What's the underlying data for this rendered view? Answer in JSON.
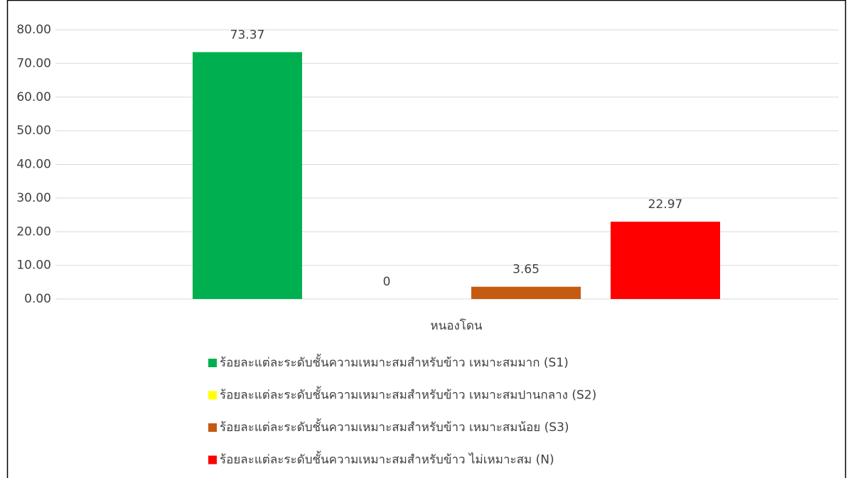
{
  "chart_data": {
    "type": "bar",
    "categories": [
      "หนองโดน"
    ],
    "series": [
      {
        "name": "ร้อยละแต่ละระดับชั้นความเหมาะสมสำหรับข้าว เหมาะสมมาก (S1)",
        "color": "#00b050",
        "values": [
          73.37
        ]
      },
      {
        "name": "ร้อยละแต่ละระดับชั้นความเหมาะสมสำหรับข้าว เหมาะสมปานกลาง (S2)",
        "color": "#ffff00",
        "values": [
          0
        ]
      },
      {
        "name": "ร้อยละแต่ละระดับชั้นความเหมาะสมสำหรับข้าว เหมาะสมน้อย (S3)",
        "color": "#c55a11",
        "values": [
          3.65
        ]
      },
      {
        "name": "ร้อยละแต่ละระดับชั้นความเหมาะสมสำหรับข้าว ไม่เหมาะสม (N)",
        "color": "#ff0000",
        "values": [
          22.97
        ]
      }
    ],
    "ylim": [
      0,
      80
    ],
    "yticks": [
      {
        "value": 0,
        "label": "0.00"
      },
      {
        "value": 10,
        "label": "10.00"
      },
      {
        "value": 20,
        "label": "20.00"
      },
      {
        "value": 30,
        "label": "30.00"
      },
      {
        "value": 40,
        "label": "40.00"
      },
      {
        "value": 50,
        "label": "50.00"
      },
      {
        "value": 60,
        "label": "60.00"
      },
      {
        "value": 70,
        "label": "70.00"
      },
      {
        "value": 80,
        "label": "80.00"
      }
    ],
    "grid": true,
    "legend": "bottom"
  }
}
